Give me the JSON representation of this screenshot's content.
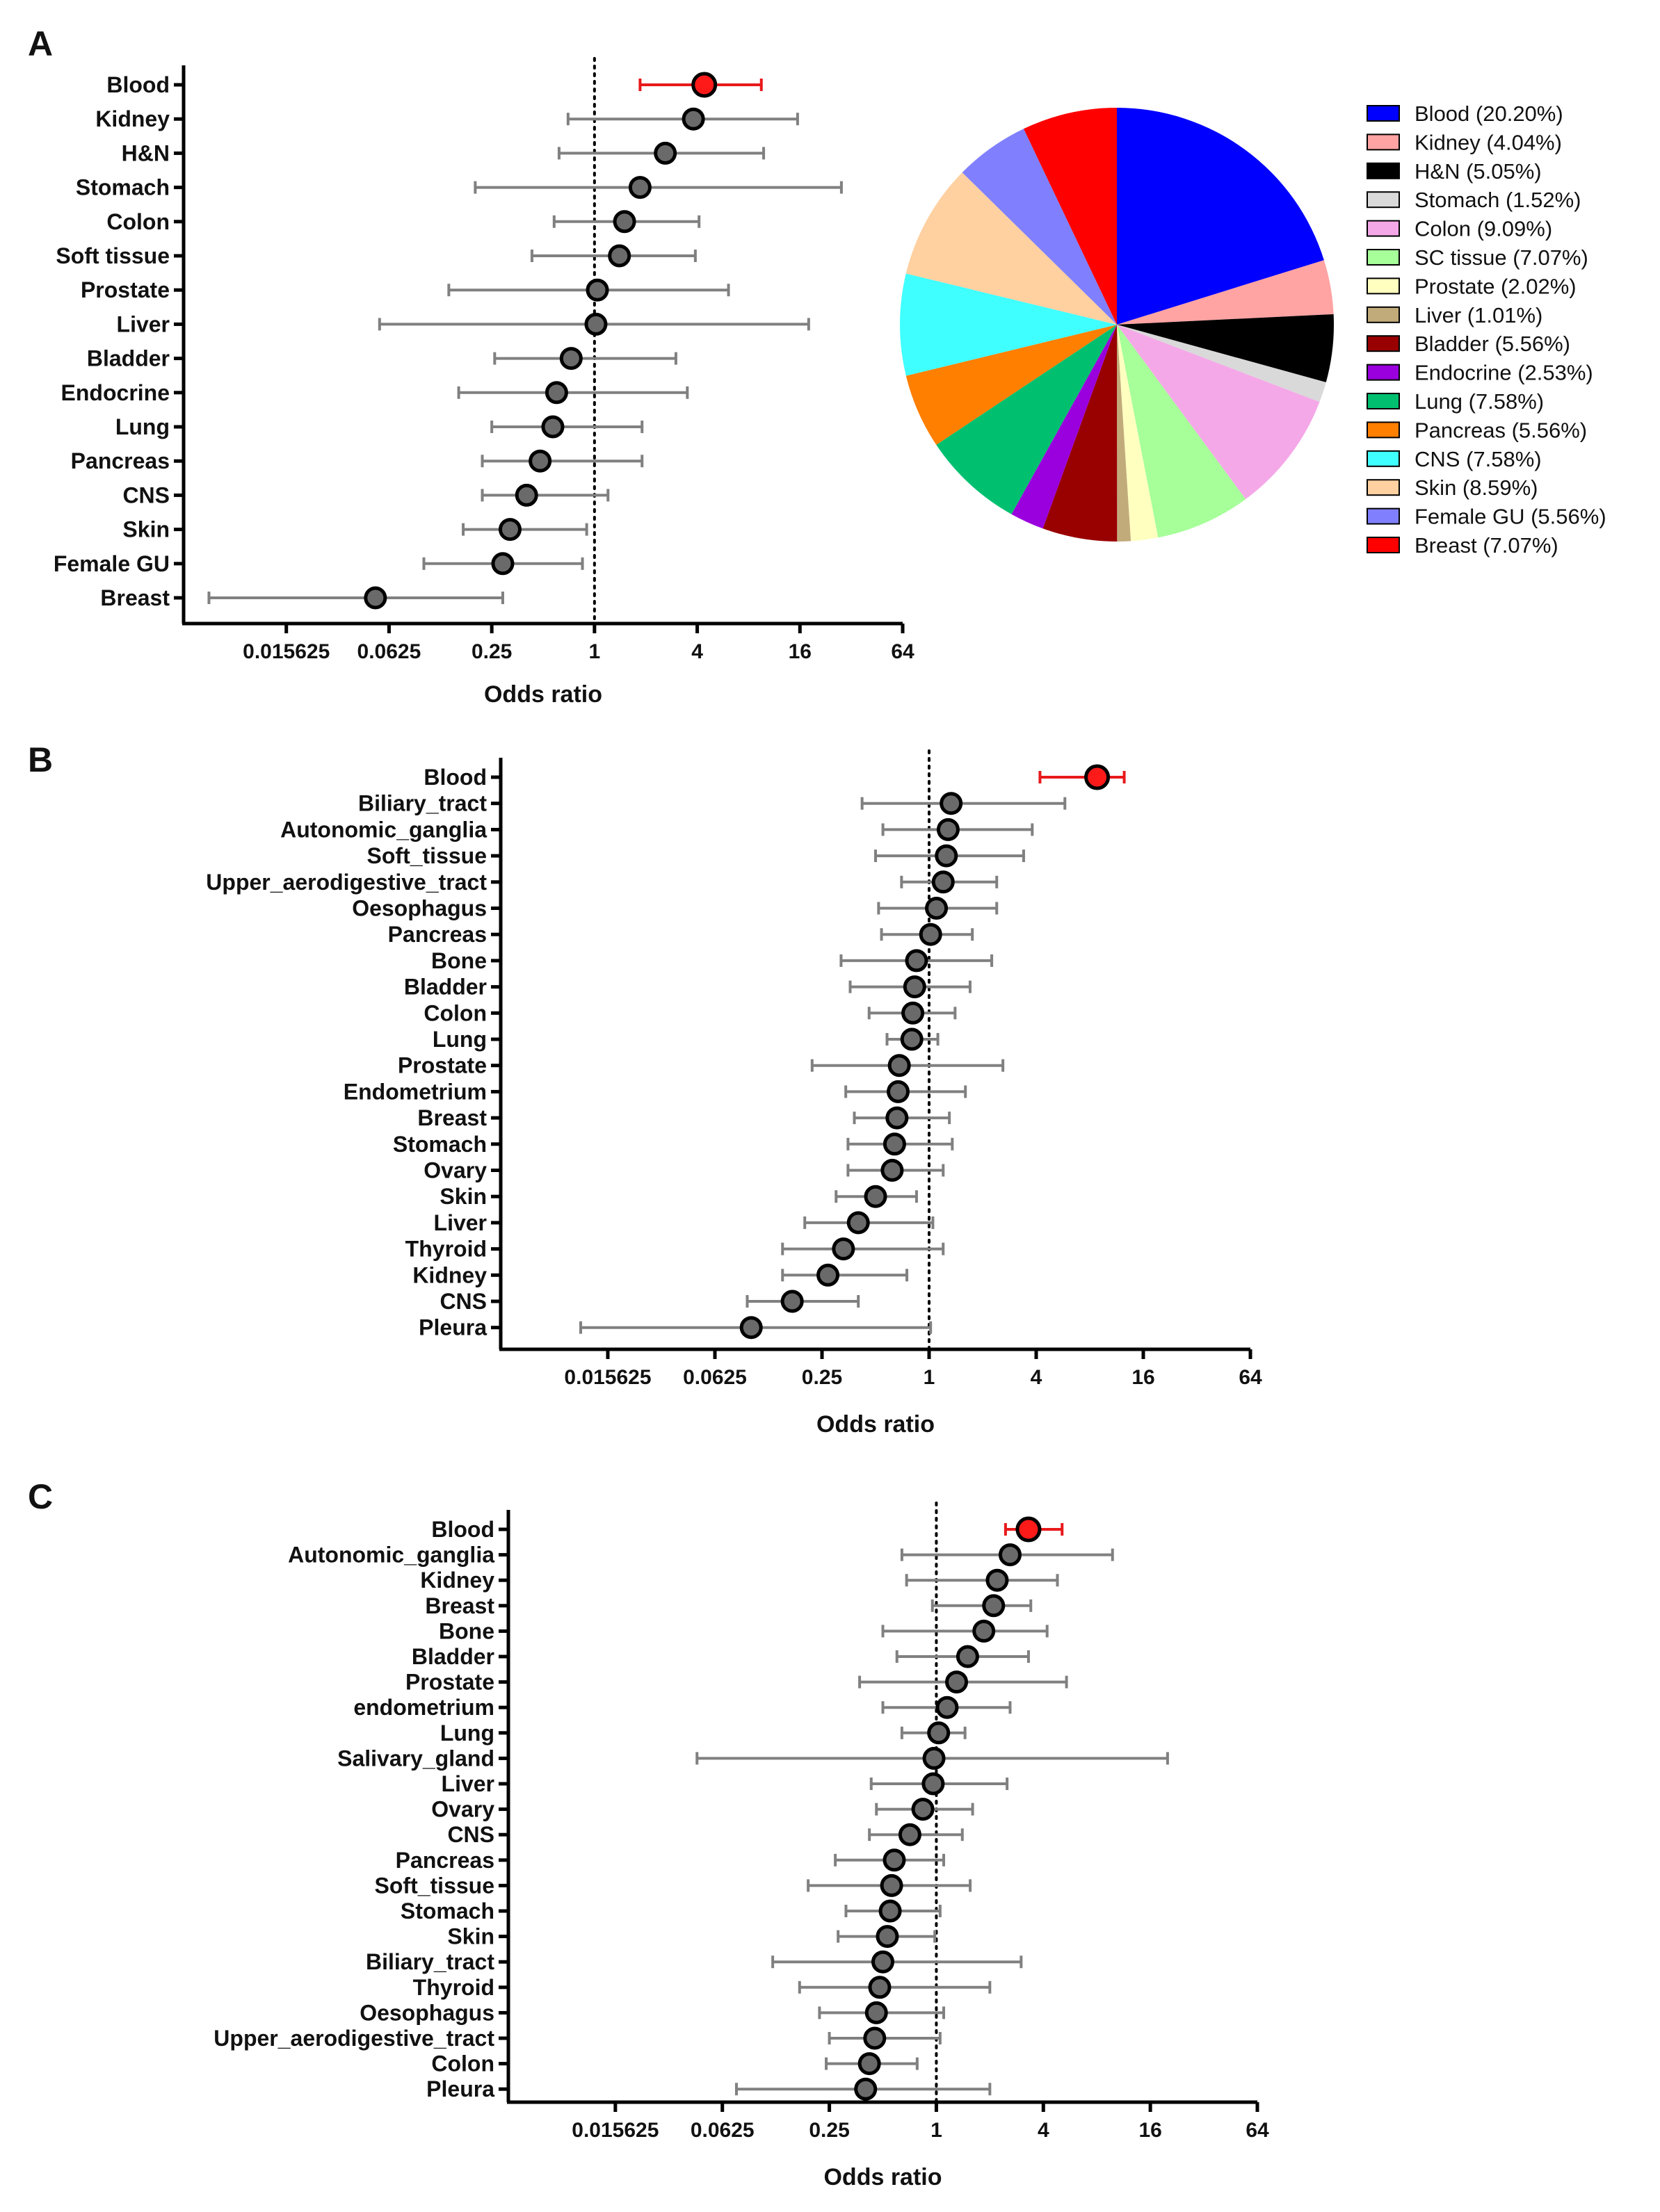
{
  "figure": {
    "panel_labels": [
      "A",
      "B",
      "C"
    ]
  },
  "chart_data": [
    {
      "type": "forest",
      "panel": "A",
      "xlabel": "Odds ratio",
      "xscale": "log2",
      "xlim": [
        0.00390625,
        64
      ],
      "xticks": [
        "0.015625",
        "0.0625",
        "0.25",
        "1",
        "4",
        "16",
        "64"
      ],
      "reference_line": 1,
      "highlight_color": "#e8191b",
      "rows": [
        {
          "label": "Blood",
          "or": 4.4,
          "lo": 1.85,
          "hi": 9.5,
          "highlight": true
        },
        {
          "label": "Kidney",
          "or": 3.8,
          "lo": 0.7,
          "hi": 15.5
        },
        {
          "label": "H&N",
          "or": 2.6,
          "lo": 0.62,
          "hi": 9.8
        },
        {
          "label": "Stomach",
          "or": 1.85,
          "lo": 0.2,
          "hi": 28
        },
        {
          "label": "Colon",
          "or": 1.5,
          "lo": 0.58,
          "hi": 4.1
        },
        {
          "label": "Soft tissue",
          "or": 1.4,
          "lo": 0.43,
          "hi": 3.9
        },
        {
          "label": "Prostate",
          "or": 1.04,
          "lo": 0.14,
          "hi": 6.1
        },
        {
          "label": "Liver",
          "or": 1.02,
          "lo": 0.055,
          "hi": 18
        },
        {
          "label": "Bladder",
          "or": 0.73,
          "lo": 0.26,
          "hi": 3.0
        },
        {
          "label": "Endocrine",
          "or": 0.6,
          "lo": 0.16,
          "hi": 3.5
        },
        {
          "label": "Lung",
          "or": 0.57,
          "lo": 0.25,
          "hi": 1.9
        },
        {
          "label": "Pancreas",
          "or": 0.48,
          "lo": 0.22,
          "hi": 1.9
        },
        {
          "label": "CNS",
          "or": 0.4,
          "lo": 0.22,
          "hi": 1.2
        },
        {
          "label": "Skin",
          "or": 0.32,
          "lo": 0.17,
          "hi": 0.9
        },
        {
          "label": "Female GU",
          "or": 0.29,
          "lo": 0.1,
          "hi": 0.85
        },
        {
          "label": "Breast",
          "or": 0.052,
          "lo": 0.0055,
          "hi": 0.29
        }
      ]
    },
    {
      "type": "pie",
      "panel": "A",
      "slices": [
        {
          "label": "Blood (20.20%)",
          "value": 20.2,
          "color": "#0000ff"
        },
        {
          "label": "Kidney (4.04%)",
          "value": 4.04,
          "color": "#ffa3a3"
        },
        {
          "label": "H&N (5.05%)",
          "value": 5.05,
          "color": "#000000"
        },
        {
          "label": "Stomach (1.52%)",
          "value": 1.52,
          "color": "#d9d9d9"
        },
        {
          "label": "Colon (9.09%)",
          "value": 9.09,
          "color": "#f5a8e8"
        },
        {
          "label": "SC tissue (7.07%)",
          "value": 7.07,
          "color": "#a6ff99"
        },
        {
          "label": "Prostate (2.02%)",
          "value": 2.02,
          "color": "#ffffc0"
        },
        {
          "label": "Liver (1.01%)",
          "value": 1.01,
          "color": "#c2ab7a"
        },
        {
          "label": "Bladder (5.56%)",
          "value": 5.56,
          "color": "#990000"
        },
        {
          "label": "Endocrine (2.53%)",
          "value": 2.53,
          "color": "#9900dd"
        },
        {
          "label": "Lung (7.58%)",
          "value": 7.58,
          "color": "#00c070"
        },
        {
          "label": "Pancreas (5.56%)",
          "value": 5.56,
          "color": "#ff7f00"
        },
        {
          "label": "CNS (7.58%)",
          "value": 7.58,
          "color": "#40ffff"
        },
        {
          "label": "Skin (8.59%)",
          "value": 8.59,
          "color": "#ffd0a0"
        },
        {
          "label": "Female GU (5.56%)",
          "value": 5.56,
          "color": "#8080ff"
        },
        {
          "label": "Breast (7.07%)",
          "value": 7.07,
          "color": "#ff0000"
        }
      ]
    },
    {
      "type": "forest",
      "panel": "B",
      "xlabel": "Odds ratio",
      "xscale": "log2",
      "xlim": [
        0.00390625,
        64
      ],
      "xticks": [
        "0.015625",
        "0.0625",
        "0.25",
        "1",
        "4",
        "16",
        "64"
      ],
      "reference_line": 1,
      "highlight_color": "#e8191b",
      "rows": [
        {
          "label": "Blood",
          "or": 8.8,
          "lo": 4.2,
          "hi": 12.5,
          "highlight": true
        },
        {
          "label": "Biliary_tract",
          "or": 1.33,
          "lo": 0.42,
          "hi": 5.8
        },
        {
          "label": "Autonomic_ganglia",
          "or": 1.28,
          "lo": 0.55,
          "hi": 3.8
        },
        {
          "label": "Soft_tissue",
          "or": 1.25,
          "lo": 0.5,
          "hi": 3.4
        },
        {
          "label": "Upper_aerodigestive_tract",
          "or": 1.2,
          "lo": 0.7,
          "hi": 2.4
        },
        {
          "label": "Oesophagus",
          "or": 1.1,
          "lo": 0.52,
          "hi": 2.4
        },
        {
          "label": "Pancreas",
          "or": 1.02,
          "lo": 0.54,
          "hi": 1.75
        },
        {
          "label": "Bone",
          "or": 0.85,
          "lo": 0.32,
          "hi": 2.25
        },
        {
          "label": "Bladder",
          "or": 0.83,
          "lo": 0.36,
          "hi": 1.7
        },
        {
          "label": "Colon",
          "or": 0.81,
          "lo": 0.46,
          "hi": 1.4
        },
        {
          "label": "Lung",
          "or": 0.8,
          "lo": 0.58,
          "hi": 1.12
        },
        {
          "label": "Prostate",
          "or": 0.68,
          "lo": 0.22,
          "hi": 2.6
        },
        {
          "label": "Endometrium",
          "or": 0.67,
          "lo": 0.34,
          "hi": 1.6
        },
        {
          "label": "Breast",
          "or": 0.66,
          "lo": 0.38,
          "hi": 1.3
        },
        {
          "label": "Stomach",
          "or": 0.64,
          "lo": 0.35,
          "hi": 1.35
        },
        {
          "label": "Ovary",
          "or": 0.62,
          "lo": 0.35,
          "hi": 1.2
        },
        {
          "label": "Skin",
          "or": 0.5,
          "lo": 0.3,
          "hi": 0.85
        },
        {
          "label": "Liver",
          "or": 0.4,
          "lo": 0.2,
          "hi": 1.05
        },
        {
          "label": "Thyroid",
          "or": 0.33,
          "lo": 0.15,
          "hi": 1.2
        },
        {
          "label": "Kidney",
          "or": 0.27,
          "lo": 0.15,
          "hi": 0.75
        },
        {
          "label": "CNS",
          "or": 0.17,
          "lo": 0.095,
          "hi": 0.4
        },
        {
          "label": "Pleura",
          "or": 0.1,
          "lo": 0.011,
          "hi": 1.02
        }
      ]
    },
    {
      "type": "forest",
      "panel": "C",
      "xlabel": "Odds ratio",
      "xscale": "log2",
      "xlim": [
        0.00390625,
        64
      ],
      "xticks": [
        "0.015625",
        "0.0625",
        "0.25",
        "1",
        "4",
        "16",
        "64"
      ],
      "reference_line": 1,
      "highlight_color": "#e8191b",
      "rows": [
        {
          "label": "Blood",
          "or": 3.3,
          "lo": 2.45,
          "hi": 5.1,
          "highlight": true
        },
        {
          "label": "Autonomic_ganglia",
          "or": 2.6,
          "lo": 0.64,
          "hi": 9.8
        },
        {
          "label": "Kidney",
          "or": 2.2,
          "lo": 0.68,
          "hi": 4.8
        },
        {
          "label": "Breast",
          "or": 2.1,
          "lo": 0.95,
          "hi": 3.4
        },
        {
          "label": "Bone",
          "or": 1.85,
          "lo": 0.5,
          "hi": 4.2
        },
        {
          "label": "Bladder",
          "or": 1.5,
          "lo": 0.6,
          "hi": 3.3
        },
        {
          "label": "Prostate",
          "or": 1.3,
          "lo": 0.37,
          "hi": 5.4
        },
        {
          "label": "endometrium",
          "or": 1.15,
          "lo": 0.5,
          "hi": 2.6
        },
        {
          "label": "Lung",
          "or": 1.03,
          "lo": 0.64,
          "hi": 1.45
        },
        {
          "label": "Salivary_gland",
          "or": 0.97,
          "lo": 0.045,
          "hi": 20
        },
        {
          "label": "Liver",
          "or": 0.96,
          "lo": 0.43,
          "hi": 2.5
        },
        {
          "label": "Ovary",
          "or": 0.84,
          "lo": 0.46,
          "hi": 1.6
        },
        {
          "label": "CNS",
          "or": 0.71,
          "lo": 0.42,
          "hi": 1.4
        },
        {
          "label": "Pancreas",
          "or": 0.58,
          "lo": 0.27,
          "hi": 1.1
        },
        {
          "label": "Soft_tissue",
          "or": 0.56,
          "lo": 0.19,
          "hi": 1.55
        },
        {
          "label": "Stomach",
          "or": 0.55,
          "lo": 0.31,
          "hi": 1.05
        },
        {
          "label": "Skin",
          "or": 0.53,
          "lo": 0.28,
          "hi": 0.98
        },
        {
          "label": "Biliary_tract",
          "or": 0.5,
          "lo": 0.12,
          "hi": 3.0
        },
        {
          "label": "Thyroid",
          "or": 0.48,
          "lo": 0.17,
          "hi": 2.0
        },
        {
          "label": "Oesophagus",
          "or": 0.46,
          "lo": 0.22,
          "hi": 1.1
        },
        {
          "label": "Upper_aerodigestive_tract",
          "or": 0.45,
          "lo": 0.25,
          "hi": 1.05
        },
        {
          "label": "Colon",
          "or": 0.42,
          "lo": 0.24,
          "hi": 0.78
        },
        {
          "label": "Pleura",
          "or": 0.4,
          "lo": 0.075,
          "hi": 2.0
        }
      ]
    }
  ]
}
